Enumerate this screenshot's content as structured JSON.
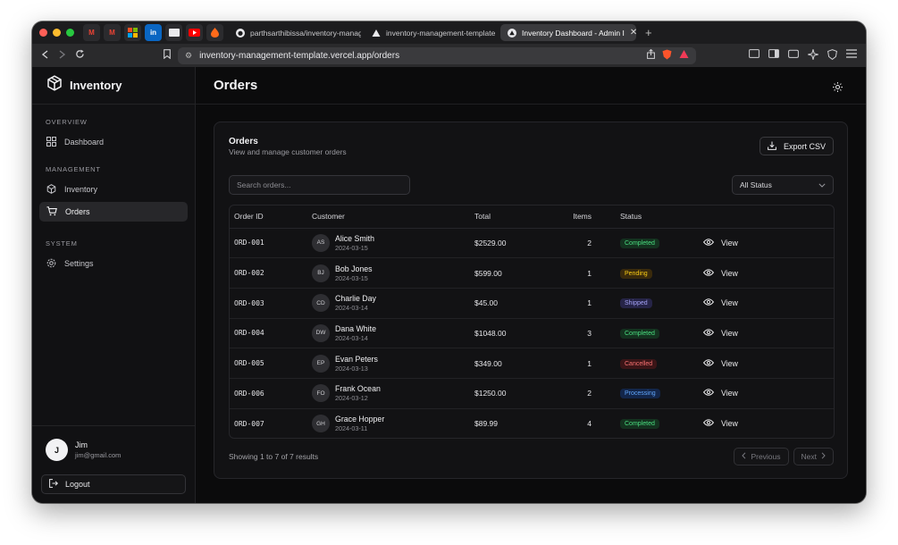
{
  "browser": {
    "tabs": [
      {
        "label": "parthsarthibissa/inventory-manag"
      },
      {
        "label": "inventory-management-template -"
      },
      {
        "label": "Inventory Dashboard - Admin I"
      }
    ],
    "url": "inventory-management-template.vercel.app/orders"
  },
  "sidebar": {
    "brand": "Inventory",
    "sections": [
      {
        "label": "OVERVIEW",
        "items": [
          {
            "label": "Dashboard",
            "icon": "dashboard-grid-icon"
          }
        ]
      },
      {
        "label": "MANAGEMENT",
        "items": [
          {
            "label": "Inventory",
            "icon": "box-icon"
          },
          {
            "label": "Orders",
            "icon": "cart-icon",
            "active": true
          }
        ]
      },
      {
        "label": "SYSTEM",
        "items": [
          {
            "label": "Settings",
            "icon": "gear-icon"
          }
        ]
      }
    ],
    "user": {
      "initial": "J",
      "name": "Jim",
      "email": "jim@gmail.com"
    },
    "logout": "Logout"
  },
  "header": {
    "title": "Orders"
  },
  "card": {
    "title": "Orders",
    "subtitle": "View and manage customer orders",
    "export_label": "Export CSV",
    "search_placeholder": "Search orders...",
    "status_filter": "All Status",
    "columns": [
      "Order ID",
      "Customer",
      "Total",
      "Items",
      "Status"
    ],
    "rows": [
      {
        "id": "ORD-001",
        "initials": "AS",
        "name": "Alice Smith",
        "date": "2024-03-15",
        "total": "$2529.00",
        "items": "2",
        "status": "Completed",
        "action": "View"
      },
      {
        "id": "ORD-002",
        "initials": "BJ",
        "name": "Bob Jones",
        "date": "2024-03-15",
        "total": "$599.00",
        "items": "1",
        "status": "Pending",
        "action": "View"
      },
      {
        "id": "ORD-003",
        "initials": "CD",
        "name": "Charlie Day",
        "date": "2024-03-14",
        "total": "$45.00",
        "items": "1",
        "status": "Shipped",
        "action": "View"
      },
      {
        "id": "ORD-004",
        "initials": "DW",
        "name": "Dana White",
        "date": "2024-03-14",
        "total": "$1048.00",
        "items": "3",
        "status": "Completed",
        "action": "View"
      },
      {
        "id": "ORD-005",
        "initials": "EP",
        "name": "Evan Peters",
        "date": "2024-03-13",
        "total": "$349.00",
        "items": "1",
        "status": "Cancelled",
        "action": "View"
      },
      {
        "id": "ORD-006",
        "initials": "FO",
        "name": "Frank Ocean",
        "date": "2024-03-12",
        "total": "$1250.00",
        "items": "2",
        "status": "Processing",
        "action": "View"
      },
      {
        "id": "ORD-007",
        "initials": "GH",
        "name": "Grace Hopper",
        "date": "2024-03-11",
        "total": "$89.99",
        "items": "4",
        "status": "Completed",
        "action": "View"
      }
    ],
    "results_text": "Showing 1 to 7 of 7 results",
    "prev_label": "Previous",
    "next_label": "Next"
  },
  "status_colors": {
    "Completed": {
      "bg": "#14321f",
      "fg": "#4ade80"
    },
    "Pending": {
      "bg": "#3a2a0c",
      "fg": "#facc15"
    },
    "Shipped": {
      "bg": "#262447",
      "fg": "#a5a3f7"
    },
    "Cancelled": {
      "bg": "#3b1517",
      "fg": "#f87171"
    },
    "Processing": {
      "bg": "#13264a",
      "fg": "#60a5fa"
    }
  }
}
